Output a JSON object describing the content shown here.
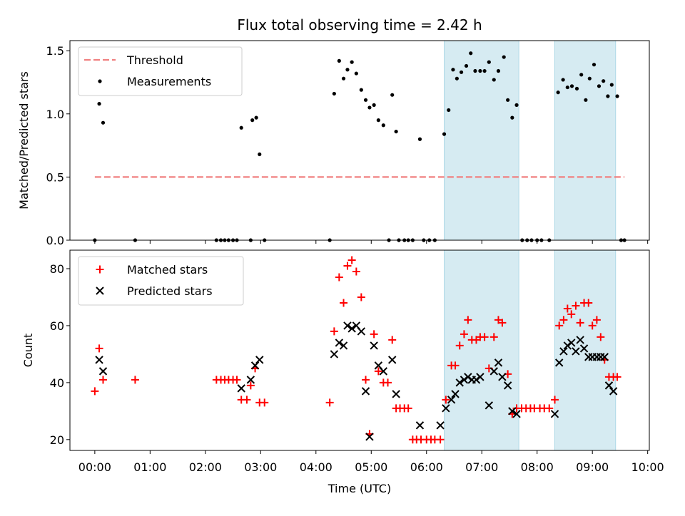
{
  "title": "Flux total observing time = 2.42 h",
  "chart_data": [
    {
      "type": "scatter",
      "panel": "top",
      "ylabel": "Matched/Predicted stars",
      "ylim": [
        0,
        1.58
      ],
      "yticks": [
        0.0,
        0.5,
        1.0,
        1.5
      ],
      "ytick_labels": [
        "0.0",
        "0.5",
        "1.0",
        "1.5"
      ],
      "xlim": [
        -0.45,
        10.03
      ],
      "threshold": {
        "name": "Threshold",
        "value": 0.5,
        "x_range": [
          0,
          9.58
        ],
        "color": "#f08080"
      },
      "shaded_intervals": [
        [
          6.32,
          7.67
        ],
        [
          8.32,
          9.42
        ]
      ],
      "series": [
        {
          "name": "Measurements",
          "color": "#000000",
          "points": [
            [
              0.0,
              0.0
            ],
            [
              0.08,
              1.08
            ],
            [
              0.15,
              0.93
            ],
            [
              0.73,
              0.0
            ],
            [
              2.2,
              0.0
            ],
            [
              2.28,
              0.0
            ],
            [
              2.35,
              0.0
            ],
            [
              2.42,
              0.0
            ],
            [
              2.5,
              0.0
            ],
            [
              2.57,
              0.0
            ],
            [
              2.65,
              0.89
            ],
            [
              2.82,
              0.0
            ],
            [
              2.85,
              0.95
            ],
            [
              2.92,
              0.97
            ],
            [
              2.98,
              0.68
            ],
            [
              3.07,
              0.0
            ],
            [
              4.25,
              0.0
            ],
            [
              4.33,
              1.16
            ],
            [
              4.42,
              1.42
            ],
            [
              4.5,
              1.28
            ],
            [
              4.57,
              1.35
            ],
            [
              4.65,
              1.41
            ],
            [
              4.73,
              1.32
            ],
            [
              4.82,
              1.19
            ],
            [
              4.9,
              1.11
            ],
            [
              4.97,
              1.05
            ],
            [
              5.05,
              1.07
            ],
            [
              5.13,
              0.95
            ],
            [
              5.22,
              0.91
            ],
            [
              5.32,
              0.0
            ],
            [
              5.38,
              1.15
            ],
            [
              5.45,
              0.86
            ],
            [
              5.5,
              0.0
            ],
            [
              5.6,
              0.0
            ],
            [
              5.67,
              0.0
            ],
            [
              5.75,
              0.0
            ],
            [
              5.88,
              0.8
            ],
            [
              5.95,
              0.0
            ],
            [
              6.05,
              0.0
            ],
            [
              6.15,
              0.0
            ],
            [
              6.32,
              0.84
            ],
            [
              6.4,
              1.03
            ],
            [
              6.48,
              1.35
            ],
            [
              6.55,
              1.28
            ],
            [
              6.63,
              1.33
            ],
            [
              6.72,
              1.38
            ],
            [
              6.8,
              1.48
            ],
            [
              6.88,
              1.34
            ],
            [
              6.97,
              1.34
            ],
            [
              7.05,
              1.34
            ],
            [
              7.13,
              1.41
            ],
            [
              7.22,
              1.27
            ],
            [
              7.3,
              1.34
            ],
            [
              7.4,
              1.45
            ],
            [
              7.47,
              1.11
            ],
            [
              7.55,
              0.97
            ],
            [
              7.63,
              1.07
            ],
            [
              7.73,
              0.0
            ],
            [
              7.82,
              0.0
            ],
            [
              7.9,
              0.0
            ],
            [
              8.0,
              0.0
            ],
            [
              8.08,
              0.0
            ],
            [
              8.22,
              0.0
            ],
            [
              8.38,
              1.17
            ],
            [
              8.47,
              1.27
            ],
            [
              8.55,
              1.21
            ],
            [
              8.63,
              1.22
            ],
            [
              8.72,
              1.2
            ],
            [
              8.8,
              1.31
            ],
            [
              8.88,
              1.11
            ],
            [
              8.95,
              1.28
            ],
            [
              9.03,
              1.39
            ],
            [
              9.12,
              1.22
            ],
            [
              9.2,
              1.26
            ],
            [
              9.28,
              1.14
            ],
            [
              9.35,
              1.23
            ],
            [
              9.45,
              1.14
            ],
            [
              9.52,
              0.0
            ],
            [
              9.58,
              0.0
            ]
          ]
        }
      ],
      "legend": {
        "placement": "upper-left",
        "entries": [
          "Threshold",
          "Measurements"
        ]
      }
    },
    {
      "type": "scatter",
      "panel": "bottom",
      "ylabel": "Count",
      "xlabel": "Time (UTC)",
      "ylim": [
        16.2,
        86.5
      ],
      "yticks": [
        20,
        40,
        60,
        80
      ],
      "ytick_labels": [
        "20",
        "40",
        "60",
        "80"
      ],
      "xlim": [
        -0.45,
        10.03
      ],
      "xticks": [
        0,
        1,
        2,
        3,
        4,
        5,
        6,
        7,
        8,
        9,
        10
      ],
      "xtick_labels": [
        "00:00",
        "01:00",
        "02:00",
        "03:00",
        "04:00",
        "05:00",
        "06:00",
        "07:00",
        "08:00",
        "09:00",
        "10:00"
      ],
      "shaded_intervals": [
        [
          6.32,
          7.67
        ],
        [
          8.32,
          9.42
        ]
      ],
      "series": [
        {
          "name": "Matched stars",
          "marker": "plus",
          "color": "#ff0000",
          "points": [
            [
              0.0,
              37
            ],
            [
              0.08,
              52
            ],
            [
              0.15,
              41
            ],
            [
              0.73,
              41
            ],
            [
              2.2,
              41
            ],
            [
              2.28,
              41
            ],
            [
              2.35,
              41
            ],
            [
              2.42,
              41
            ],
            [
              2.5,
              41
            ],
            [
              2.57,
              41
            ],
            [
              2.65,
              34
            ],
            [
              2.75,
              34
            ],
            [
              2.82,
              39
            ],
            [
              2.9,
              45
            ],
            [
              2.98,
              33
            ],
            [
              3.07,
              33
            ],
            [
              4.25,
              33
            ],
            [
              4.33,
              58
            ],
            [
              4.42,
              77
            ],
            [
              4.5,
              68
            ],
            [
              4.57,
              81
            ],
            [
              4.65,
              83
            ],
            [
              4.73,
              79
            ],
            [
              4.82,
              70
            ],
            [
              4.9,
              41
            ],
            [
              4.97,
              22
            ],
            [
              5.05,
              57
            ],
            [
              5.13,
              44
            ],
            [
              5.22,
              40
            ],
            [
              5.3,
              40
            ],
            [
              5.38,
              55
            ],
            [
              5.45,
              31
            ],
            [
              5.52,
              31
            ],
            [
              5.6,
              31
            ],
            [
              5.67,
              31
            ],
            [
              5.75,
              20
            ],
            [
              5.82,
              20
            ],
            [
              5.9,
              20
            ],
            [
              6.0,
              20
            ],
            [
              6.08,
              20
            ],
            [
              6.15,
              20
            ],
            [
              6.25,
              20
            ],
            [
              6.35,
              34
            ],
            [
              6.45,
              46
            ],
            [
              6.52,
              46
            ],
            [
              6.6,
              53
            ],
            [
              6.68,
              57
            ],
            [
              6.75,
              62
            ],
            [
              6.82,
              55
            ],
            [
              6.9,
              55
            ],
            [
              6.97,
              56
            ],
            [
              7.05,
              56
            ],
            [
              7.13,
              45
            ],
            [
              7.22,
              56
            ],
            [
              7.3,
              62
            ],
            [
              7.37,
              61
            ],
            [
              7.47,
              43
            ],
            [
              7.55,
              29
            ],
            [
              7.63,
              31
            ],
            [
              7.72,
              31
            ],
            [
              7.8,
              31
            ],
            [
              7.88,
              31
            ],
            [
              7.95,
              31
            ],
            [
              8.05,
              31
            ],
            [
              8.13,
              31
            ],
            [
              8.22,
              31
            ],
            [
              8.32,
              34
            ],
            [
              8.4,
              60
            ],
            [
              8.48,
              62
            ],
            [
              8.55,
              66
            ],
            [
              8.62,
              64
            ],
            [
              8.7,
              67
            ],
            [
              8.78,
              61
            ],
            [
              8.85,
              68
            ],
            [
              8.93,
              68
            ],
            [
              9.0,
              60
            ],
            [
              9.08,
              62
            ],
            [
              9.15,
              56
            ],
            [
              9.22,
              48
            ],
            [
              9.3,
              42
            ],
            [
              9.38,
              42
            ],
            [
              9.45,
              42
            ]
          ]
        },
        {
          "name": "Predicted stars",
          "marker": "x",
          "color": "#000000",
          "points": [
            [
              0.08,
              48
            ],
            [
              0.15,
              44
            ],
            [
              2.65,
              38
            ],
            [
              2.82,
              41
            ],
            [
              2.9,
              46
            ],
            [
              2.98,
              48
            ],
            [
              4.33,
              50
            ],
            [
              4.42,
              54
            ],
            [
              4.5,
              53
            ],
            [
              4.57,
              60
            ],
            [
              4.65,
              59
            ],
            [
              4.73,
              60
            ],
            [
              4.82,
              58
            ],
            [
              4.9,
              37
            ],
            [
              4.97,
              21
            ],
            [
              5.05,
              53
            ],
            [
              5.13,
              46
            ],
            [
              5.22,
              44
            ],
            [
              5.38,
              48
            ],
            [
              5.45,
              36
            ],
            [
              5.88,
              25
            ],
            [
              6.25,
              25
            ],
            [
              6.35,
              31
            ],
            [
              6.45,
              34
            ],
            [
              6.52,
              36
            ],
            [
              6.6,
              40
            ],
            [
              6.68,
              41
            ],
            [
              6.75,
              42
            ],
            [
              6.82,
              41
            ],
            [
              6.9,
              41
            ],
            [
              6.97,
              42
            ],
            [
              7.13,
              32
            ],
            [
              7.22,
              44
            ],
            [
              7.3,
              47
            ],
            [
              7.37,
              42
            ],
            [
              7.47,
              39
            ],
            [
              7.55,
              30
            ],
            [
              7.63,
              29
            ],
            [
              8.32,
              29
            ],
            [
              8.4,
              47
            ],
            [
              8.48,
              51
            ],
            [
              8.55,
              53
            ],
            [
              8.62,
              54
            ],
            [
              8.7,
              51
            ],
            [
              8.78,
              55
            ],
            [
              8.85,
              52
            ],
            [
              8.93,
              49
            ],
            [
              9.0,
              49
            ],
            [
              9.08,
              49
            ],
            [
              9.15,
              49
            ],
            [
              9.22,
              49
            ],
            [
              9.3,
              39
            ],
            [
              9.38,
              37
            ]
          ]
        }
      ],
      "legend": {
        "placement": "upper-left",
        "entries": [
          "Matched stars",
          "Predicted stars"
        ]
      }
    }
  ]
}
